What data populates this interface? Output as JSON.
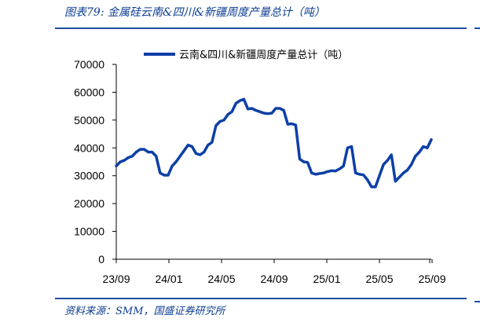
{
  "caption": "图表79:  金属硅云南&四川&新疆周度产量总计（吨）",
  "source": "资料来源：SMM，国盛证券研究所",
  "chart_data": {
    "type": "line",
    "title": "",
    "xlabel": "",
    "ylabel": "",
    "ylim": [
      0,
      70000
    ],
    "yticks": [
      "0",
      "10000",
      "20000",
      "30000",
      "40000",
      "50000",
      "60000",
      "70000"
    ],
    "xticks": [
      "23/09",
      "24/01",
      "24/05",
      "24/09",
      "25/01",
      "25/05",
      "25/09"
    ],
    "legend_position": "top",
    "grid": false,
    "color": "#0d3fa6",
    "series": [
      {
        "name": "云南&四川&新疆周度产量总计（吨）",
        "values": [
          33500,
          35000,
          35500,
          36500,
          37000,
          38500,
          39500,
          39500,
          38500,
          38500,
          37000,
          31000,
          30200,
          30200,
          33500,
          35000,
          37000,
          39000,
          41000,
          40500,
          38000,
          37500,
          38500,
          41000,
          42000,
          48000,
          49500,
          50000,
          52000,
          53000,
          56000,
          57000,
          57500,
          54000,
          54200,
          53500,
          53000,
          52500,
          52300,
          52500,
          54200,
          54200,
          53500,
          48500,
          48700,
          48200,
          36000,
          35000,
          34800,
          31000,
          30500,
          30800,
          31000,
          31500,
          31800,
          31700,
          32500,
          33500,
          40000,
          40500,
          31000,
          30500,
          30300,
          28500,
          26000,
          26000,
          30000,
          34000,
          35500,
          37500,
          28000,
          29500,
          31000,
          32000,
          34000,
          37000,
          38500,
          40500,
          40000,
          43000
        ]
      }
    ]
  }
}
